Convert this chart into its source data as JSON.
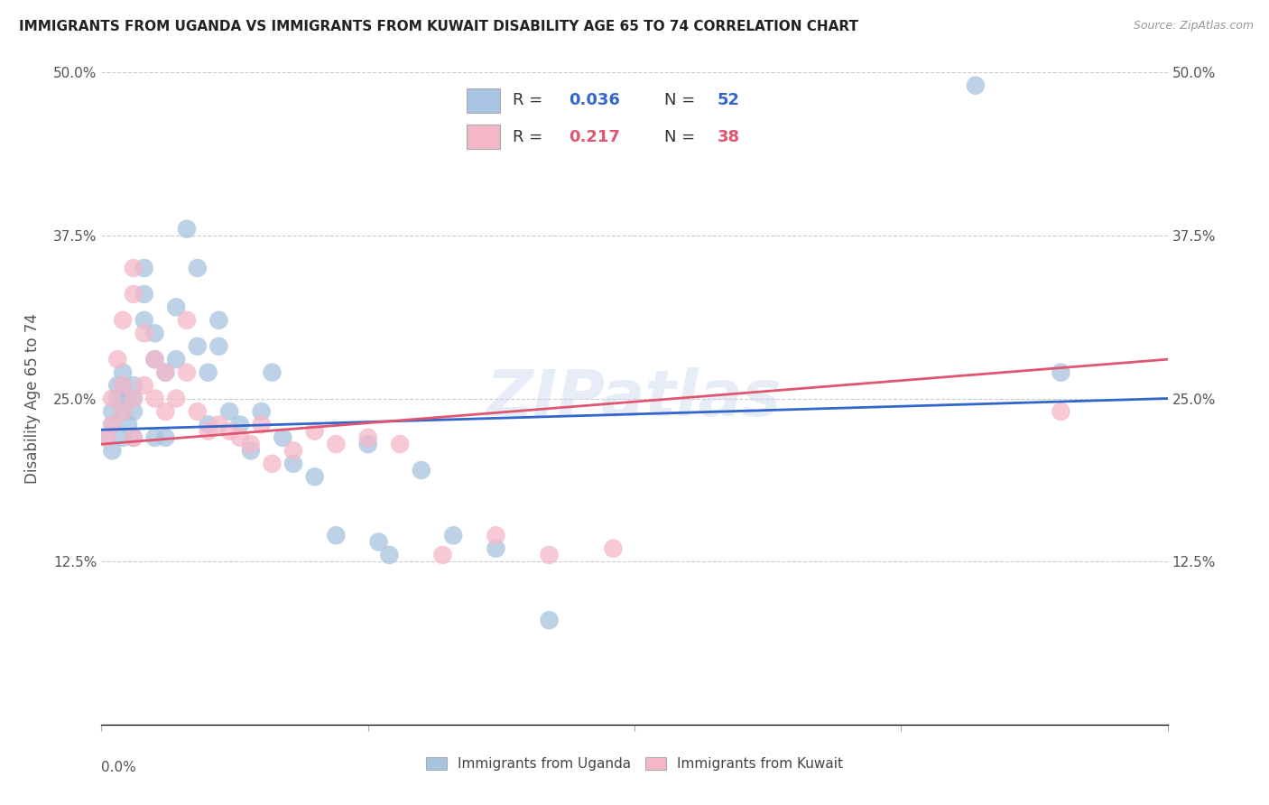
{
  "title": "IMMIGRANTS FROM UGANDA VS IMMIGRANTS FROM KUWAIT DISABILITY AGE 65 TO 74 CORRELATION CHART",
  "source": "Source: ZipAtlas.com",
  "ylabel": "Disability Age 65 to 74",
  "legend_label1": "Immigrants from Uganda",
  "legend_label2": "Immigrants from Kuwait",
  "R1": 0.036,
  "N1": 52,
  "R2": 0.217,
  "N2": 38,
  "color_uganda": "#a8c4e0",
  "color_kuwait": "#f4b8c8",
  "line_color_uganda": "#3366cc",
  "line_color_kuwait": "#e05570",
  "watermark": "ZIPatlas",
  "xlim": [
    0.0,
    0.1
  ],
  "ylim": [
    0.0,
    0.5
  ],
  "uganda_x": [
    0.0005,
    0.001,
    0.001,
    0.001,
    0.0015,
    0.0015,
    0.002,
    0.002,
    0.002,
    0.002,
    0.002,
    0.0025,
    0.0025,
    0.003,
    0.003,
    0.003,
    0.003,
    0.004,
    0.004,
    0.004,
    0.005,
    0.005,
    0.005,
    0.006,
    0.006,
    0.007,
    0.007,
    0.008,
    0.009,
    0.009,
    0.01,
    0.01,
    0.011,
    0.011,
    0.012,
    0.013,
    0.014,
    0.015,
    0.016,
    0.017,
    0.018,
    0.02,
    0.022,
    0.025,
    0.026,
    0.027,
    0.03,
    0.033,
    0.037,
    0.042,
    0.082,
    0.09
  ],
  "uganda_y": [
    0.22,
    0.21,
    0.23,
    0.24,
    0.25,
    0.26,
    0.22,
    0.24,
    0.25,
    0.26,
    0.27,
    0.23,
    0.25,
    0.22,
    0.24,
    0.25,
    0.26,
    0.31,
    0.33,
    0.35,
    0.22,
    0.28,
    0.3,
    0.22,
    0.27,
    0.32,
    0.28,
    0.38,
    0.29,
    0.35,
    0.23,
    0.27,
    0.31,
    0.29,
    0.24,
    0.23,
    0.21,
    0.24,
    0.27,
    0.22,
    0.2,
    0.19,
    0.145,
    0.215,
    0.14,
    0.13,
    0.195,
    0.145,
    0.135,
    0.08,
    0.49,
    0.27
  ],
  "kuwait_x": [
    0.0005,
    0.001,
    0.001,
    0.0015,
    0.002,
    0.002,
    0.002,
    0.003,
    0.003,
    0.003,
    0.003,
    0.004,
    0.004,
    0.005,
    0.005,
    0.006,
    0.006,
    0.007,
    0.008,
    0.008,
    0.009,
    0.01,
    0.011,
    0.012,
    0.013,
    0.014,
    0.015,
    0.016,
    0.018,
    0.02,
    0.022,
    0.025,
    0.028,
    0.032,
    0.037,
    0.042,
    0.048,
    0.09
  ],
  "kuwait_y": [
    0.22,
    0.23,
    0.25,
    0.28,
    0.24,
    0.26,
    0.31,
    0.22,
    0.25,
    0.33,
    0.35,
    0.26,
    0.3,
    0.25,
    0.28,
    0.24,
    0.27,
    0.25,
    0.27,
    0.31,
    0.24,
    0.225,
    0.23,
    0.225,
    0.22,
    0.215,
    0.23,
    0.2,
    0.21,
    0.225,
    0.215,
    0.22,
    0.215,
    0.13,
    0.145,
    0.13,
    0.135,
    0.24
  ],
  "line_uganda_x0": 0.0,
  "line_uganda_y0": 0.226,
  "line_uganda_x1": 0.1,
  "line_uganda_y1": 0.25,
  "line_kuwait_x0": 0.0,
  "line_kuwait_y0": 0.215,
  "line_kuwait_x1": 0.1,
  "line_kuwait_y1": 0.28
}
